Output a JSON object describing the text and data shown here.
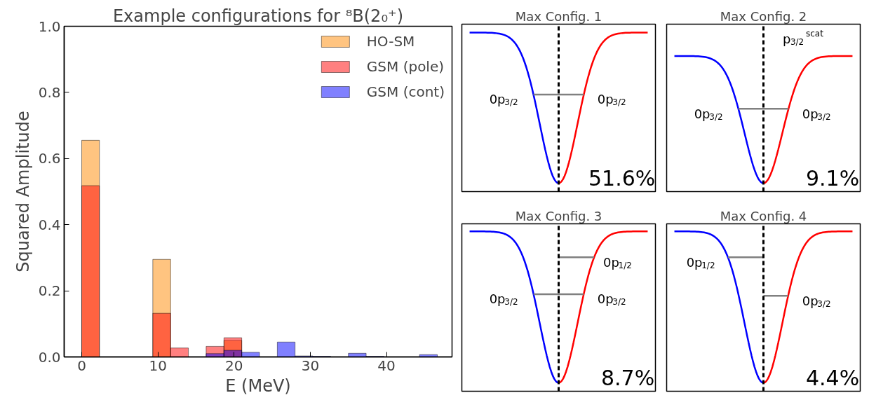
{
  "chart_data": [
    {
      "type": "histogram",
      "title": "Example configurations for ⁸B(2₀⁺)",
      "xlabel": "E (MeV)",
      "ylabel": "Squared Amplitude",
      "bins": [
        0,
        2.33,
        4.67,
        7,
        9.33,
        11.67,
        14,
        16.33,
        18.67,
        21,
        23.33,
        25.67,
        28,
        30.33,
        32.67,
        35,
        37.33,
        39.67,
        42,
        44.33,
        46.67
      ],
      "series": [
        {
          "name": "HO-SM",
          "color": "#ffc480",
          "values": [
            0.655,
            null,
            null,
            null,
            0.295,
            null,
            null,
            null,
            0.05,
            null,
            null,
            null,
            null,
            null,
            null,
            null,
            null,
            null,
            null,
            null
          ]
        },
        {
          "name": "GSM (pole)",
          "color": "#ff8080",
          "values": [
            0.518,
            null,
            null,
            null,
            0.132,
            0.027,
            null,
            0.032,
            0.058,
            null,
            null,
            null,
            null,
            null,
            null,
            null,
            null,
            null,
            null,
            null
          ]
        },
        {
          "name": "GSM (cont)",
          "color": "#8080ff",
          "values": [
            null,
            null,
            null,
            null,
            null,
            null,
            null,
            0.01,
            0.02,
            0.014,
            null,
            0.045,
            0.003,
            0.002,
            null,
            0.011,
            0.002,
            null,
            null,
            0.007
          ]
        }
      ],
      "xlim": [
        -2.3,
        48.6
      ],
      "ylim": [
        0,
        1.0
      ],
      "xticks": [
        0,
        10,
        20,
        30,
        40
      ],
      "yticks": [
        {
          "value": 0,
          "label": "0.0"
        },
        {
          "value": 0.2,
          "label": "0.2"
        },
        {
          "value": 0.4,
          "label": "0.4"
        },
        {
          "value": 0.6,
          "label": "0.6"
        },
        {
          "value": 0.8,
          "label": "0.8"
        },
        {
          "value": 1.0,
          "label": "1.0"
        }
      ],
      "legend": "top right",
      "grid": false
    },
    {
      "type": "other",
      "title": "Max Config. 1",
      "annotations": [
        "0p$_{3/2}$",
        "0p$_{3/2}$",
        "51.6%"
      ]
    },
    {
      "type": "other",
      "title": "Max Config. 2",
      "annotations": [
        "0p$_{3/2}$",
        "0p$_{3/2}$",
        "p$_{3/2}$$^{scat}$",
        "9.1%"
      ]
    },
    {
      "type": "other",
      "title": "Max Config. 3",
      "annotations": [
        "0p$_{3/2}$",
        "0p$_{1/2}$",
        "0p$_{3/2}$",
        "8.7%"
      ]
    },
    {
      "type": "other",
      "title": "Max Config. 4",
      "annotations": [
        "0p$_{1/2}$",
        "0p$_{3/2}$",
        "4.4%"
      ]
    }
  ]
}
